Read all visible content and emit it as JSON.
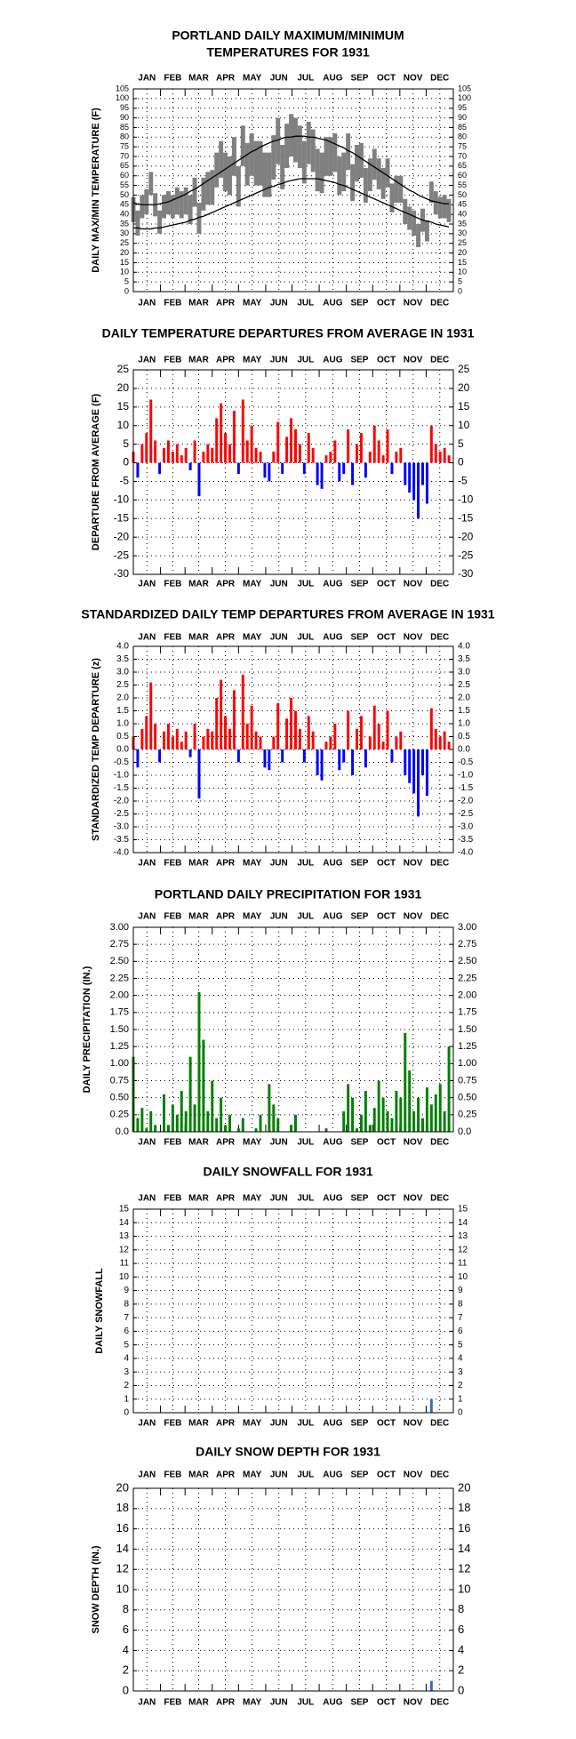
{
  "months": [
    "JAN",
    "FEB",
    "MAR",
    "APR",
    "MAY",
    "JUN",
    "JUL",
    "AUG",
    "SEP",
    "OCT",
    "NOV",
    "DEC"
  ],
  "chart_data": [
    {
      "type": "range",
      "title": [
        "PORTLAND DAILY MAXIMUM/MINIMUM",
        "TEMPERATURES FOR 1931"
      ],
      "y_label": "DAILY MAX/MIN TEMPERATURE (F)",
      "xlim": [
        1,
        366
      ],
      "ylim": [
        0,
        105
      ],
      "yticks": [
        0,
        5,
        10,
        15,
        20,
        25,
        30,
        35,
        40,
        45,
        50,
        55,
        60,
        65,
        70,
        75,
        80,
        85,
        90,
        95,
        100,
        105
      ],
      "grid": true,
      "x": [
        1,
        6,
        11,
        16,
        21,
        26,
        31,
        36,
        41,
        46,
        51,
        56,
        61,
        66,
        71,
        76,
        81,
        86,
        91,
        96,
        101,
        106,
        111,
        116,
        121,
        126,
        131,
        136,
        141,
        146,
        151,
        156,
        161,
        166,
        171,
        176,
        181,
        186,
        191,
        196,
        201,
        206,
        211,
        216,
        221,
        226,
        231,
        236,
        241,
        246,
        251,
        256,
        261,
        266,
        271,
        276,
        281,
        286,
        291,
        296,
        301,
        306,
        311,
        316,
        321,
        326,
        331,
        336,
        341,
        346,
        351,
        356,
        361
      ],
      "series": [
        {
          "color": "#808080",
          "values": [
            49,
            42,
            50,
            53,
            62,
            51,
            42,
            50,
            52,
            50,
            54,
            52,
            54,
            50,
            59,
            46,
            59,
            62,
            63,
            72,
            78,
            72,
            70,
            80,
            65,
            86,
            77,
            82,
            78,
            78,
            72,
            72,
            81,
            90,
            76,
            87,
            92,
            90,
            86,
            78,
            88,
            84,
            74,
            72,
            80,
            80,
            82,
            70,
            72,
            82,
            66,
            76,
            77,
            64,
            69,
            74,
            69,
            64,
            69,
            56,
            60,
            60,
            48,
            44,
            42,
            35,
            43,
            37,
            57,
            52,
            49,
            50,
            48
          ]
        },
        {
          "color": "#808080",
          "values": [
            36,
            29,
            38,
            40,
            50,
            39,
            30,
            38,
            40,
            38,
            40,
            38,
            40,
            35,
            44,
            30,
            42,
            45,
            45,
            54,
            59,
            52,
            50,
            60,
            44,
            65,
            55,
            60,
            55,
            55,
            49,
            49,
            58,
            66,
            53,
            64,
            70,
            67,
            64,
            56,
            66,
            62,
            52,
            51,
            60,
            60,
            62,
            50,
            52,
            63,
            47,
            57,
            59,
            46,
            52,
            58,
            53,
            48,
            54,
            41,
            46,
            46,
            35,
            32,
            29,
            23,
            31,
            26,
            46,
            40,
            38,
            38,
            36
          ]
        },
        {
          "color": "#000000",
          "values": [
            46,
            45.5,
            45,
            45,
            45,
            45,
            45.5,
            46,
            46.5,
            47.5,
            48.5,
            49.5,
            50.5,
            52,
            53,
            54.5,
            56,
            57.5,
            59,
            60.5,
            62,
            63.5,
            65,
            66.5,
            68,
            69.5,
            71,
            72.5,
            73.5,
            75,
            76,
            77,
            78,
            78.5,
            79.5,
            80,
            80,
            80.5,
            80.5,
            80.5,
            80,
            80,
            79.5,
            79,
            78.5,
            77.5,
            76.5,
            75.5,
            74.5,
            73,
            72,
            70.5,
            69,
            67.5,
            66,
            64.5,
            63,
            61.5,
            60,
            58.5,
            57,
            55.5,
            54,
            52.5,
            51.5,
            50,
            49,
            48,
            47,
            46.5,
            46,
            45.5,
            45.5
          ]
        },
        {
          "color": "#000000",
          "values": [
            33,
            33,
            32.5,
            32.5,
            32.5,
            33,
            33,
            33.5,
            34,
            34.5,
            35,
            35.5,
            36,
            37,
            37.5,
            38.5,
            39,
            40,
            41,
            42,
            43,
            44,
            45,
            46,
            47,
            48,
            49,
            50,
            51,
            52,
            53,
            54,
            54.5,
            55.5,
            56,
            57,
            57.5,
            58,
            58.5,
            58.5,
            58.5,
            58.5,
            58.5,
            58,
            57.5,
            57,
            56.5,
            55.5,
            55,
            54,
            53,
            52,
            51,
            50,
            49,
            48,
            47,
            46,
            45,
            44,
            43,
            42,
            41,
            40,
            39,
            38,
            37,
            36.5,
            36,
            35,
            34.5,
            34,
            33.5
          ]
        }
      ]
    },
    {
      "type": "bar",
      "title": [
        "DAILY TEMPERATURE DEPARTURES FROM AVERAGE IN 1931"
      ],
      "y_label": "DEPARTURE FROM AVERAGE (F)",
      "xlim": [
        1,
        366
      ],
      "ylim": [
        -30,
        25
      ],
      "yticks": [
        -30,
        -25,
        -20,
        -15,
        -10,
        -5,
        0,
        5,
        10,
        15,
        20,
        25
      ],
      "grid": true,
      "color_positive": "#ff0000",
      "color_negative": "#0000ff",
      "x": [
        1,
        6,
        11,
        16,
        21,
        26,
        31,
        36,
        41,
        46,
        51,
        56,
        61,
        66,
        71,
        76,
        81,
        86,
        91,
        96,
        101,
        106,
        111,
        116,
        121,
        126,
        131,
        136,
        141,
        146,
        151,
        156,
        161,
        166,
        171,
        176,
        181,
        186,
        191,
        196,
        201,
        206,
        211,
        216,
        221,
        226,
        231,
        236,
        241,
        246,
        251,
        256,
        261,
        266,
        271,
        276,
        281,
        286,
        291,
        296,
        301,
        306,
        311,
        316,
        321,
        326,
        331,
        336,
        341,
        346,
        351,
        356,
        361
      ],
      "values": [
        3,
        -4,
        5,
        8,
        17,
        6,
        -3,
        4,
        6,
        3,
        5,
        2,
        4,
        -2,
        6,
        -9,
        3,
        5,
        4,
        12,
        16,
        8,
        5,
        14,
        -3,
        17,
        6,
        10,
        4,
        3,
        -4,
        -5,
        3,
        11,
        -3,
        7,
        12,
        9,
        5,
        -3,
        8,
        4,
        -6,
        -7,
        2,
        3,
        6,
        -5,
        -3,
        9,
        -6,
        5,
        8,
        -4,
        3,
        10,
        6,
        2,
        9,
        -3,
        3,
        4,
        -6,
        -8,
        -10,
        -15,
        -6,
        -11,
        10,
        5,
        3,
        4,
        2
      ]
    },
    {
      "type": "bar",
      "title": [
        "STANDARDIZED DAILY TEMP DEPARTURES FROM AVERAGE IN 1931"
      ],
      "y_label": "STANDARDIZED TEMP DEPARTURE (z)",
      "xlim": [
        1,
        366
      ],
      "ylim": [
        -4,
        4
      ],
      "yticks": [
        {
          "value": -4,
          "label": "-4.0"
        },
        -3.5,
        {
          "value": -3,
          "label": "-3.0"
        },
        -2.5,
        {
          "value": -2,
          "label": "-2.0"
        },
        -1.5,
        {
          "value": -1,
          "label": "-1.0"
        },
        -0.5,
        {
          "value": 0,
          "label": "0.0"
        },
        0.5,
        {
          "value": 1,
          "label": "1.0"
        },
        1.5,
        {
          "value": 2,
          "label": "2.0"
        },
        2.5,
        {
          "value": 3,
          "label": "3.0"
        },
        3.5,
        {
          "value": 4,
          "label": "4.0"
        }
      ],
      "grid": true,
      "color_positive": "#ff0000",
      "color_negative": "#0000ff",
      "x": [
        1,
        6,
        11,
        16,
        21,
        26,
        31,
        36,
        41,
        46,
        51,
        56,
        61,
        66,
        71,
        76,
        81,
        86,
        91,
        96,
        101,
        106,
        111,
        116,
        121,
        126,
        131,
        136,
        141,
        146,
        151,
        156,
        161,
        166,
        171,
        176,
        181,
        186,
        191,
        196,
        201,
        206,
        211,
        216,
        221,
        226,
        231,
        236,
        241,
        246,
        251,
        256,
        261,
        266,
        271,
        276,
        281,
        286,
        291,
        296,
        301,
        306,
        311,
        316,
        321,
        326,
        331,
        336,
        341,
        346,
        351,
        356,
        361
      ],
      "values": [
        0.5,
        -0.7,
        0.8,
        1.3,
        2.6,
        1.0,
        -0.5,
        0.7,
        1.0,
        0.5,
        0.8,
        0.3,
        0.7,
        -0.3,
        1.0,
        -1.9,
        0.5,
        0.8,
        0.7,
        2.0,
        2.7,
        1.3,
        0.8,
        2.3,
        -0.5,
        2.9,
        1.0,
        1.7,
        0.7,
        0.5,
        -0.7,
        -0.8,
        0.5,
        1.8,
        -0.5,
        1.2,
        2.0,
        1.5,
        0.8,
        -0.5,
        1.3,
        0.7,
        -1.0,
        -1.2,
        0.3,
        0.5,
        1.0,
        -0.8,
        -0.5,
        1.5,
        -1.0,
        0.8,
        1.3,
        -0.7,
        0.5,
        1.7,
        1.0,
        0.3,
        1.5,
        -0.5,
        0.5,
        0.7,
        -1.0,
        -1.3,
        -1.7,
        -2.6,
        -1.0,
        -1.8,
        1.6,
        0.8,
        0.5,
        0.7,
        0.3
      ]
    },
    {
      "type": "bar",
      "title": [
        "PORTLAND DAILY PRECIPITATION FOR 1931"
      ],
      "y_label": "DAILY PRECIPITATION (IN.)",
      "xlim": [
        1,
        366
      ],
      "ylim": [
        0,
        3
      ],
      "yticks": [
        {
          "value": 0,
          "label": "0.0"
        },
        0.25,
        {
          "value": 0.5,
          "label": "0.50"
        },
        0.75,
        {
          "value": 1,
          "label": "1.00"
        },
        1.25,
        {
          "value": 1.5,
          "label": "1.50"
        },
        1.75,
        {
          "value": 2,
          "label": "2.00"
        },
        2.25,
        {
          "value": 2.5,
          "label": "2.50"
        },
        2.75,
        {
          "value": 3,
          "label": "3.00"
        }
      ],
      "grid": true,
      "color": "#008000",
      "x": [
        1,
        6,
        11,
        16,
        21,
        26,
        31,
        36,
        41,
        46,
        51,
        56,
        61,
        66,
        71,
        76,
        81,
        86,
        91,
        96,
        101,
        106,
        111,
        116,
        121,
        126,
        131,
        136,
        141,
        146,
        151,
        156,
        161,
        166,
        171,
        176,
        181,
        186,
        191,
        196,
        201,
        206,
        211,
        216,
        221,
        226,
        231,
        236,
        241,
        246,
        251,
        256,
        261,
        266,
        271,
        276,
        281,
        286,
        291,
        296,
        301,
        306,
        311,
        316,
        321,
        326,
        331,
        336,
        341,
        346,
        351,
        356,
        361
      ],
      "values": [
        1.1,
        0.2,
        0.35,
        0.05,
        0.3,
        0.1,
        0,
        0.55,
        0.1,
        0.4,
        0.25,
        0.6,
        0.3,
        1.1,
        0.4,
        2.05,
        1.35,
        0.3,
        0.75,
        0.2,
        0.5,
        0.1,
        0.25,
        0,
        0.05,
        0.2,
        0,
        0,
        0.05,
        0.25,
        0,
        0.7,
        0.4,
        0.2,
        0,
        0,
        0.1,
        0.25,
        0,
        0,
        0,
        0,
        0,
        0,
        0.05,
        0,
        0,
        0,
        0.3,
        0.7,
        0.5,
        0.05,
        0.25,
        0.6,
        0.1,
        0.35,
        0.75,
        0.5,
        0.3,
        0.2,
        0.6,
        0.5,
        1.45,
        0.9,
        0.3,
        0.5,
        0.2,
        0.65,
        0.4,
        0.55,
        0.7,
        0.3,
        1.25
      ]
    },
    {
      "type": "bar",
      "title": [
        "DAILY SNOWFALL FOR 1931"
      ],
      "y_label": "DAILY SNOWFALL",
      "xlim": [
        1,
        366
      ],
      "ylim": [
        0,
        15
      ],
      "yticks": [
        0,
        1,
        2,
        3,
        4,
        5,
        6,
        7,
        8,
        9,
        10,
        11,
        12,
        13,
        14,
        15
      ],
      "grid": true,
      "color": "#3070c0",
      "x": [
        341
      ],
      "values": [
        1
      ]
    },
    {
      "type": "bar",
      "title": [
        "DAILY SNOW DEPTH FOR 1931"
      ],
      "y_label": "SNOW DEPTH (IN.)",
      "xlim": [
        1,
        366
      ],
      "ylim": [
        0,
        20
      ],
      "yticks": [
        0,
        2,
        4,
        6,
        8,
        10,
        12,
        14,
        16,
        18,
        20
      ],
      "grid": true,
      "color": "#3070c0",
      "x": [
        341
      ],
      "values": [
        1
      ]
    }
  ]
}
